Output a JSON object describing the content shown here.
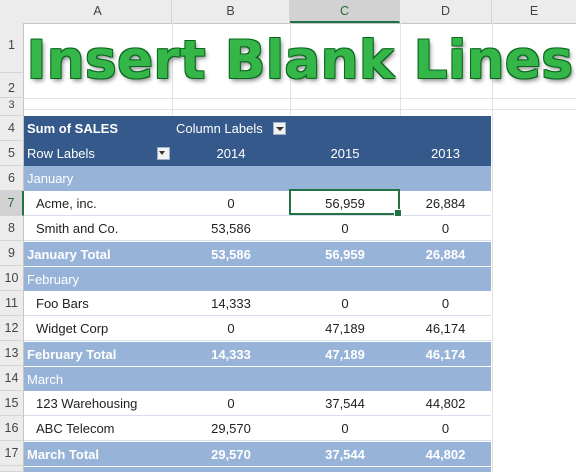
{
  "columns": [
    "A",
    "B",
    "C",
    "D",
    "E"
  ],
  "rows": [
    "1",
    "2",
    "3",
    "4",
    "5",
    "6",
    "7",
    "8",
    "9",
    "10",
    "11",
    "12",
    "13",
    "14",
    "15",
    "16",
    "17"
  ],
  "title": "Insert Blank Lines",
  "pivot": {
    "values_label": "Sum of SALES",
    "column_labels": "Column Labels",
    "row_labels": "Row Labels",
    "years": [
      "2014",
      "2015",
      "2013"
    ],
    "groups": [
      {
        "name": "January",
        "items": [
          {
            "name": "Acme, inc.",
            "values": [
              "0",
              "56,959",
              "26,884"
            ]
          },
          {
            "name": "Smith and Co.",
            "values": [
              "53,586",
              "0",
              "0"
            ]
          }
        ],
        "total_label": "January Total",
        "totals": [
          "53,586",
          "56,959",
          "26,884"
        ]
      },
      {
        "name": "February",
        "items": [
          {
            "name": "Foo Bars",
            "values": [
              "14,333",
              "0",
              "0"
            ]
          },
          {
            "name": "Widget Corp",
            "values": [
              "0",
              "47,189",
              "46,174"
            ]
          }
        ],
        "total_label": "February Total",
        "totals": [
          "14,333",
          "47,189",
          "46,174"
        ]
      },
      {
        "name": "March",
        "items": [
          {
            "name": "123 Warehousing",
            "values": [
              "0",
              "37,544",
              "44,802"
            ]
          },
          {
            "name": "ABC Telecom",
            "values": [
              "29,570",
              "0",
              "0"
            ]
          }
        ],
        "total_label": "March Total",
        "totals": [
          "29,570",
          "37,544",
          "44,802"
        ]
      }
    ]
  },
  "selected_cell": "C7",
  "colors": {
    "header_bg": "#35598a",
    "band_bg": "#98b3d8",
    "title_green": "#35b648",
    "selection": "#217346"
  }
}
